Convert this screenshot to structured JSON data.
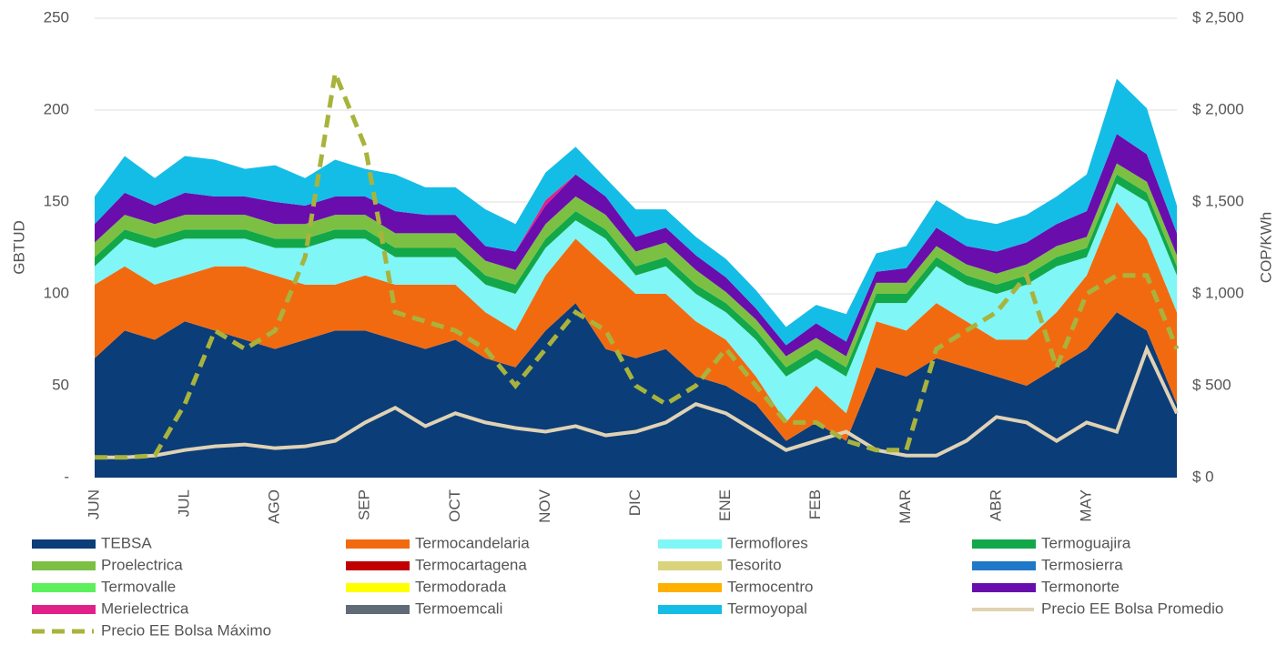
{
  "chart_data": {
    "type": "area",
    "stacked": true,
    "y_label": "GBTUD",
    "y2_label": "COP/KWh",
    "categories": [
      "JUN",
      null,
      null,
      "JUL",
      null,
      null,
      "AGO",
      null,
      null,
      "SEP",
      null,
      null,
      "OCT",
      null,
      null,
      "NOV",
      null,
      null,
      "DIC",
      null,
      null,
      "ENE",
      null,
      null,
      "FEB",
      null,
      null,
      "MAR",
      null,
      null,
      "ABR",
      null,
      null,
      "MAY",
      null,
      null,
      null
    ],
    "ylim": [
      0,
      250
    ],
    "yticks": [
      {
        "value": 0,
        "label": "-"
      },
      50,
      100,
      150,
      200,
      250
    ],
    "y2lim": [
      0,
      2500
    ],
    "y2ticks": [
      {
        "value": 0,
        "label": "$ 0"
      },
      {
        "value": 500,
        "label": "$ 500"
      },
      {
        "value": 1000,
        "label": "$ 1,000"
      },
      {
        "value": 1500,
        "label": "$ 1,500"
      },
      {
        "value": 2000,
        "label": "$ 2,000"
      },
      {
        "value": 2500,
        "label": "$ 2,500"
      }
    ],
    "grid": true,
    "series": [
      {
        "name": "TEBSA",
        "color": "#0b3d78",
        "values": [
          65,
          80,
          75,
          85,
          80,
          75,
          70,
          75,
          80,
          80,
          75,
          70,
          75,
          65,
          60,
          80,
          95,
          70,
          65,
          70,
          55,
          50,
          40,
          20,
          30,
          20,
          60,
          55,
          65,
          60,
          55,
          50,
          60,
          70,
          90,
          80,
          40
        ]
      },
      {
        "name": "Termocandelaria",
        "color": "#f26a10",
        "values": [
          40,
          35,
          30,
          25,
          35,
          40,
          40,
          30,
          25,
          30,
          30,
          35,
          30,
          25,
          20,
          30,
          35,
          45,
          35,
          30,
          30,
          25,
          15,
          10,
          20,
          15,
          25,
          25,
          30,
          25,
          20,
          25,
          30,
          40,
          60,
          50,
          50
        ]
      },
      {
        "name": "Termoflores",
        "color": "#80f6f6",
        "values": [
          10,
          15,
          20,
          20,
          15,
          15,
          15,
          20,
          25,
          20,
          15,
          15,
          15,
          15,
          20,
          15,
          10,
          15,
          10,
          15,
          15,
          15,
          20,
          25,
          15,
          20,
          10,
          15,
          20,
          20,
          25,
          30,
          25,
          10,
          10,
          20,
          20
        ]
      },
      {
        "name": "Termoguajira",
        "color": "#12a84a",
        "values": [
          5,
          5,
          5,
          5,
          5,
          5,
          5,
          5,
          5,
          5,
          5,
          5,
          5,
          5,
          5,
          5,
          5,
          5,
          5,
          5,
          5,
          5,
          5,
          5,
          5,
          5,
          5,
          5,
          5,
          5,
          5,
          5,
          5,
          5,
          5,
          5,
          5
        ]
      },
      {
        "name": "Proelectrica",
        "color": "#7cc043",
        "values": [
          8,
          8,
          8,
          8,
          8,
          8,
          8,
          8,
          8,
          8,
          8,
          8,
          8,
          8,
          8,
          8,
          8,
          8,
          8,
          8,
          8,
          6,
          6,
          6,
          6,
          6,
          6,
          6,
          6,
          6,
          6,
          6,
          6,
          6,
          6,
          6,
          6
        ]
      },
      {
        "name": "Termocartagena",
        "color": "#c00000",
        "values": [
          0,
          0,
          0,
          0,
          0,
          0,
          0,
          0,
          0,
          0,
          0,
          0,
          0,
          0,
          0,
          0,
          0,
          0,
          0,
          0,
          0,
          0,
          0,
          0,
          0,
          0,
          0,
          0,
          0,
          0,
          0,
          0,
          0,
          0,
          0,
          0,
          0
        ]
      },
      {
        "name": "Tesorito",
        "color": "#d9d47c",
        "values": [
          0,
          0,
          0,
          0,
          0,
          0,
          0,
          0,
          0,
          0,
          0,
          0,
          0,
          0,
          0,
          0,
          0,
          0,
          0,
          0,
          0,
          0,
          0,
          0,
          0,
          0,
          0,
          0,
          0,
          0,
          0,
          0,
          0,
          0,
          0,
          0,
          0
        ]
      },
      {
        "name": "Termosierra",
        "color": "#1f78c8",
        "values": [
          0,
          0,
          0,
          0,
          0,
          0,
          0,
          0,
          0,
          0,
          0,
          0,
          0,
          0,
          0,
          0,
          0,
          0,
          0,
          0,
          0,
          0,
          0,
          0,
          0,
          0,
          0,
          0,
          0,
          0,
          0,
          0,
          0,
          0,
          0,
          0,
          0
        ]
      },
      {
        "name": "Termovalle",
        "color": "#5df05d",
        "values": [
          0,
          0,
          0,
          0,
          0,
          0,
          0,
          0,
          0,
          0,
          0,
          0,
          0,
          0,
          0,
          0,
          0,
          0,
          0,
          0,
          0,
          0,
          0,
          0,
          0,
          0,
          0,
          0,
          0,
          0,
          0,
          0,
          0,
          0,
          0,
          0,
          0
        ]
      },
      {
        "name": "Termodorada",
        "color": "#ffff00",
        "values": [
          0,
          0,
          0,
          0,
          0,
          0,
          0,
          0,
          0,
          0,
          0,
          0,
          0,
          0,
          0,
          0,
          0,
          0,
          0,
          0,
          0,
          0,
          0,
          0,
          0,
          0,
          0,
          0,
          0,
          0,
          0,
          0,
          0,
          0,
          0,
          0,
          0
        ]
      },
      {
        "name": "Termocentro",
        "color": "#ffb000",
        "values": [
          0,
          0,
          0,
          0,
          0,
          0,
          0,
          0,
          0,
          0,
          0,
          0,
          0,
          0,
          0,
          0,
          0,
          0,
          0,
          0,
          0,
          0,
          0,
          0,
          0,
          0,
          0,
          0,
          0,
          0,
          0,
          0,
          0,
          0,
          0,
          0,
          0
        ]
      },
      {
        "name": "Termonorte",
        "color": "#6a0dad",
        "values": [
          10,
          12,
          10,
          12,
          10,
          10,
          12,
          10,
          10,
          10,
          12,
          10,
          10,
          8,
          10,
          10,
          12,
          10,
          8,
          8,
          8,
          8,
          6,
          6,
          8,
          8,
          6,
          8,
          10,
          10,
          12,
          12,
          12,
          14,
          16,
          15,
          12
        ]
      },
      {
        "name": "Merielectrica",
        "color": "#e0218a",
        "values": [
          0,
          0,
          0,
          0,
          0,
          0,
          0,
          0,
          0,
          0,
          0,
          0,
          0,
          0,
          0,
          3,
          0,
          0,
          0,
          0,
          0,
          0,
          0,
          0,
          0,
          0,
          0,
          0,
          0,
          0,
          0,
          0,
          0,
          0,
          0,
          0,
          0
        ]
      },
      {
        "name": "Termoemcali",
        "color": "#5f6b77",
        "values": [
          0,
          0,
          0,
          0,
          0,
          0,
          0,
          0,
          0,
          0,
          0,
          0,
          0,
          0,
          0,
          0,
          0,
          0,
          0,
          0,
          0,
          0,
          0,
          0,
          0,
          0,
          0,
          0,
          0,
          0,
          0,
          0,
          0,
          0,
          0,
          0,
          0
        ]
      },
      {
        "name": "Termoyopal",
        "color": "#14bde6",
        "values": [
          15,
          20,
          15,
          20,
          20,
          15,
          20,
          15,
          20,
          15,
          20,
          15,
          15,
          20,
          15,
          15,
          15,
          10,
          15,
          10,
          10,
          10,
          10,
          10,
          10,
          15,
          10,
          12,
          15,
          15,
          15,
          15,
          15,
          20,
          30,
          25,
          15
        ]
      },
      {
        "name": "Precio EE Bolsa Promedio",
        "type": "line",
        "axis": "y2",
        "color": "#e0d2b4",
        "values": [
          110,
          110,
          120,
          150,
          170,
          180,
          160,
          170,
          200,
          300,
          380,
          280,
          350,
          300,
          270,
          250,
          280,
          230,
          250,
          300,
          400,
          350,
          250,
          150,
          200,
          250,
          150,
          120,
          120,
          200,
          330,
          300,
          200,
          300,
          250,
          700,
          350
        ]
      },
      {
        "name": "Precio EE Bolsa Máximo",
        "type": "line",
        "axis": "y2",
        "dashed": true,
        "color": "#a9b33c",
        "values": [
          110,
          110,
          120,
          400,
          800,
          700,
          800,
          1200,
          2200,
          1800,
          900,
          850,
          800,
          700,
          500,
          700,
          900,
          800,
          500,
          400,
          500,
          700,
          500,
          300,
          300,
          200,
          150,
          150,
          700,
          800,
          900,
          1100,
          600,
          1000,
          1100,
          1100,
          700
        ]
      }
    ]
  }
}
